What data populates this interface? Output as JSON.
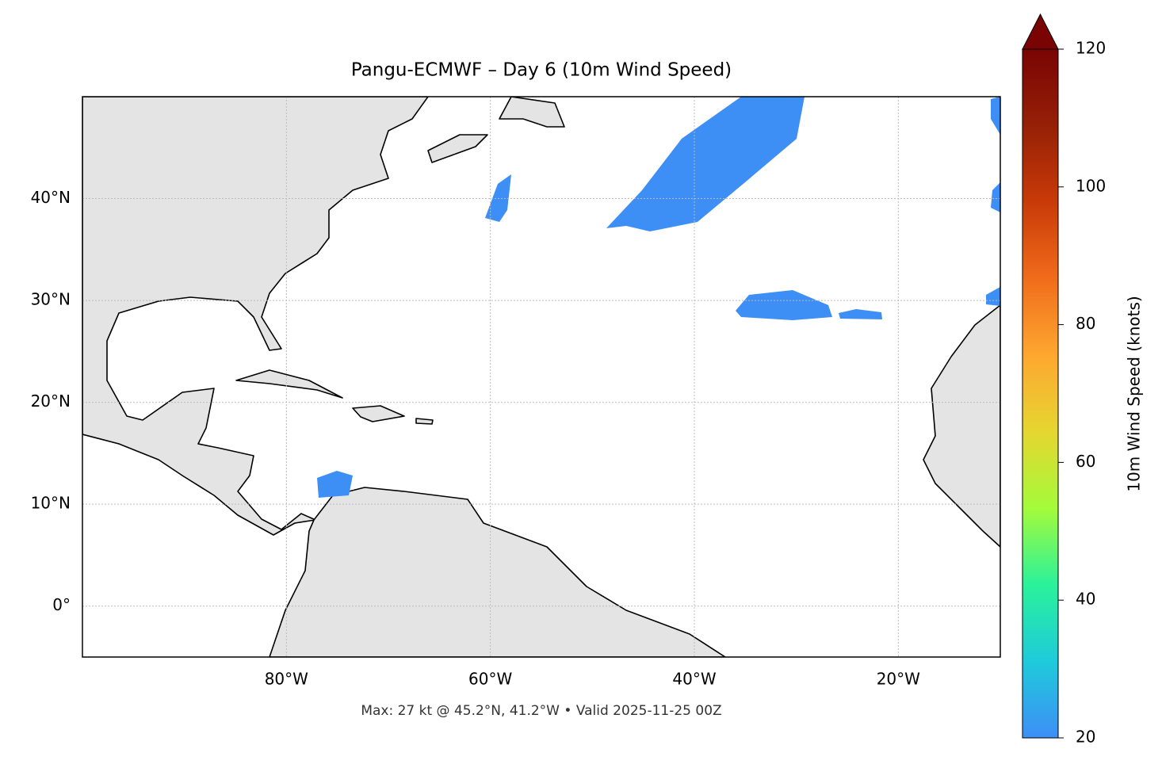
{
  "chart_data": {
    "type": "map",
    "title": "Pangu-ECMWF – Day 6 (10m Wind Speed)",
    "xlim": [
      -100,
      -10
    ],
    "ylim": [
      -5,
      50
    ],
    "xticks": [
      {
        "value": -80,
        "label": "80°W"
      },
      {
        "value": -60,
        "label": "60°W"
      },
      {
        "value": -40,
        "label": "40°W"
      },
      {
        "value": -20,
        "label": "20°W"
      }
    ],
    "yticks": [
      {
        "value": 0,
        "label": "0°"
      },
      {
        "value": 10,
        "label": "10°N"
      },
      {
        "value": 20,
        "label": "20°N"
      },
      {
        "value": 30,
        "label": "30°N"
      },
      {
        "value": 40,
        "label": "40°N"
      }
    ],
    "grid": true,
    "colorbar": {
      "label": "10m Wind Speed (knots)",
      "lim": [
        20,
        120
      ],
      "ticks": [
        20,
        40,
        60,
        80,
        100,
        120
      ],
      "extend": "max",
      "colors": [
        "#3e8ef7",
        "#1ecbda",
        "#2af29a",
        "#a4fb3a",
        "#e5d630",
        "#fea730",
        "#f06c1b",
        "#c93a08",
        "#962006",
        "#7a0403"
      ]
    },
    "annotation": "Max: 27 kt @ 45.2°N, 41.2°W • Valid 2025-11-25 00Z"
  }
}
